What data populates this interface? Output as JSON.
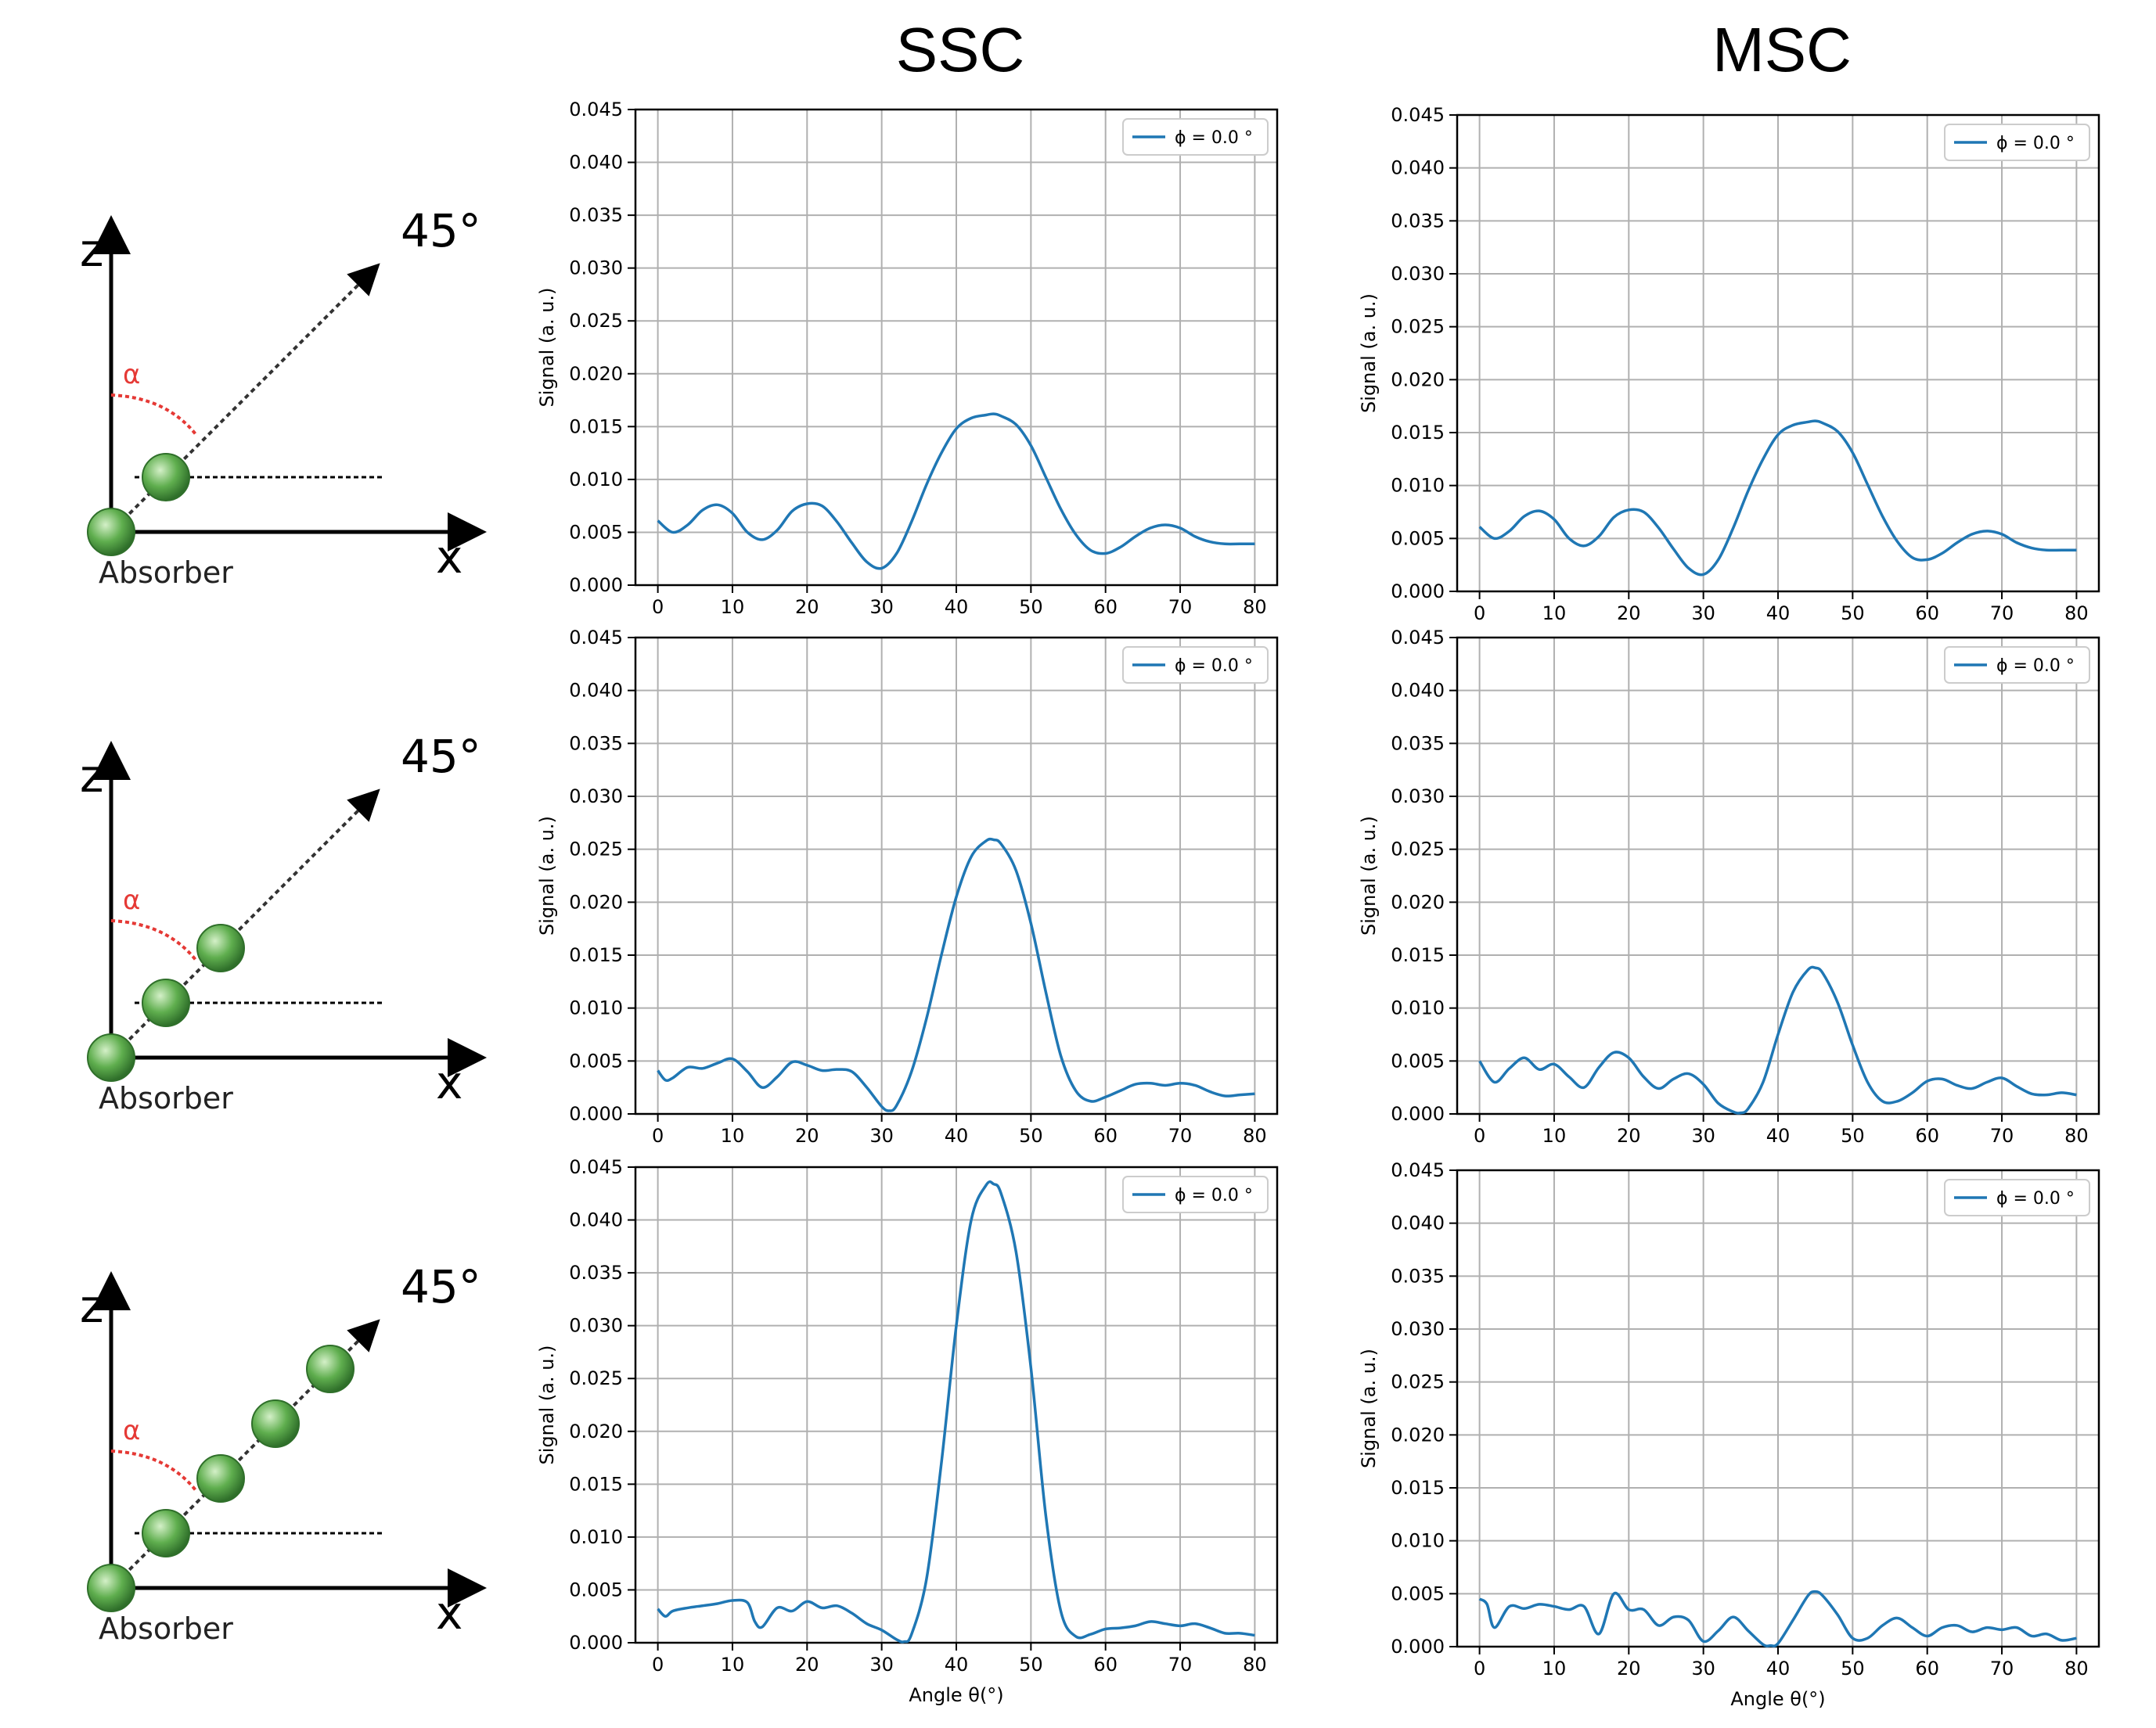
{
  "column_titles": [
    "SSC",
    "MSC"
  ],
  "diagram": {
    "axis_z": "z",
    "axis_x": "x",
    "angle_label": "45°",
    "alpha_label": "α",
    "absorber_label": "Absorber",
    "rows": [
      {
        "neighbors": 1
      },
      {
        "neighbors": 2
      },
      {
        "neighbors": 4
      }
    ]
  },
  "colors": {
    "line": "#1f77b4",
    "grid": "#b0b0b0",
    "alpha": "#e53935",
    "sphere": "#5fae4e",
    "sphere_edge": "#2f6f2a"
  },
  "chart_data": [
    {
      "type": "line",
      "row": 1,
      "column": "SSC",
      "xlabel": "",
      "ylabel": "Signal (a. u.)",
      "xlim": [
        -3,
        83
      ],
      "ylim": [
        0,
        0.045
      ],
      "xticks": [
        0,
        10,
        20,
        30,
        40,
        50,
        60,
        70,
        80
      ],
      "yticks": [
        0.0,
        0.005,
        0.01,
        0.015,
        0.02,
        0.025,
        0.03,
        0.035,
        0.04,
        0.045
      ],
      "grid": true,
      "legend_position": "top-right",
      "series": [
        {
          "name": "ϕ = 0.0 °",
          "x": [
            0,
            2,
            4,
            6,
            8,
            10,
            12,
            14,
            16,
            18,
            20,
            22,
            24,
            26,
            28,
            30,
            32,
            34,
            36,
            38,
            40,
            42,
            44,
            45,
            46,
            48,
            50,
            52,
            54,
            56,
            58,
            60,
            62,
            64,
            66,
            68,
            70,
            72,
            74,
            76,
            78,
            80
          ],
          "y": [
            0.0061,
            0.005,
            0.0057,
            0.0071,
            0.0076,
            0.0068,
            0.005,
            0.0043,
            0.0052,
            0.007,
            0.0077,
            0.0075,
            0.006,
            0.004,
            0.0022,
            0.0016,
            0.003,
            0.006,
            0.0095,
            0.0125,
            0.0148,
            0.0158,
            0.0161,
            0.0162,
            0.016,
            0.0152,
            0.0132,
            0.0102,
            0.0072,
            0.0048,
            0.0033,
            0.003,
            0.0036,
            0.0046,
            0.0054,
            0.0057,
            0.0054,
            0.0046,
            0.0041,
            0.0039,
            0.0039,
            0.0039
          ]
        }
      ]
    },
    {
      "type": "line",
      "row": 1,
      "column": "MSC",
      "xlabel": "",
      "ylabel": "Signal (a. u.)",
      "xlim": [
        -3,
        83
      ],
      "ylim": [
        0,
        0.045
      ],
      "xticks": [
        0,
        10,
        20,
        30,
        40,
        50,
        60,
        70,
        80
      ],
      "yticks": [
        0.0,
        0.005,
        0.01,
        0.015,
        0.02,
        0.025,
        0.03,
        0.035,
        0.04,
        0.045
      ],
      "grid": true,
      "legend_position": "top-right",
      "series": [
        {
          "name": "ϕ = 0.0 °",
          "x": [
            0,
            2,
            4,
            6,
            8,
            10,
            12,
            14,
            16,
            18,
            20,
            22,
            24,
            26,
            28,
            30,
            32,
            34,
            36,
            38,
            40,
            42,
            44,
            45,
            46,
            48,
            50,
            52,
            54,
            56,
            58,
            60,
            62,
            64,
            66,
            68,
            70,
            72,
            74,
            76,
            78,
            80
          ],
          "y": [
            0.0061,
            0.005,
            0.0057,
            0.0071,
            0.0076,
            0.0068,
            0.005,
            0.0043,
            0.0052,
            0.007,
            0.0077,
            0.0075,
            0.006,
            0.004,
            0.0022,
            0.0016,
            0.003,
            0.006,
            0.0095,
            0.0125,
            0.0148,
            0.0157,
            0.016,
            0.0161,
            0.0159,
            0.0151,
            0.0131,
            0.0101,
            0.0071,
            0.0047,
            0.0032,
            0.003,
            0.0036,
            0.0046,
            0.0054,
            0.0057,
            0.0054,
            0.0046,
            0.0041,
            0.0039,
            0.0039,
            0.0039
          ]
        }
      ]
    },
    {
      "type": "line",
      "row": 2,
      "column": "SSC",
      "xlabel": "",
      "ylabel": "Signal (a. u.)",
      "xlim": [
        -3,
        83
      ],
      "ylim": [
        0,
        0.045
      ],
      "xticks": [
        0,
        10,
        20,
        30,
        40,
        50,
        60,
        70,
        80
      ],
      "yticks": [
        0.0,
        0.005,
        0.01,
        0.015,
        0.02,
        0.025,
        0.03,
        0.035,
        0.04,
        0.045
      ],
      "grid": true,
      "legend_position": "top-right",
      "series": [
        {
          "name": "ϕ = 0.0 °",
          "x": [
            0,
            1,
            2,
            4,
            6,
            8,
            10,
            12,
            14,
            16,
            18,
            20,
            22,
            24,
            26,
            28,
            30,
            31,
            32,
            34,
            36,
            38,
            40,
            42,
            44,
            45,
            46,
            48,
            50,
            52,
            54,
            56,
            58,
            60,
            62,
            64,
            66,
            68,
            70,
            72,
            74,
            76,
            78,
            80
          ],
          "y": [
            0.0041,
            0.0032,
            0.0034,
            0.0044,
            0.0043,
            0.0048,
            0.0052,
            0.004,
            0.0025,
            0.0035,
            0.0049,
            0.0046,
            0.0041,
            0.0042,
            0.004,
            0.0025,
            0.0007,
            0.0003,
            0.0008,
            0.004,
            0.009,
            0.015,
            0.0205,
            0.0243,
            0.0258,
            0.0259,
            0.0255,
            0.023,
            0.018,
            0.0115,
            0.0055,
            0.0022,
            0.0012,
            0.0016,
            0.0022,
            0.0028,
            0.0029,
            0.0027,
            0.0029,
            0.0027,
            0.0021,
            0.0017,
            0.0018,
            0.0019
          ]
        }
      ]
    },
    {
      "type": "line",
      "row": 2,
      "column": "MSC",
      "xlabel": "",
      "ylabel": "Signal (a. u.)",
      "xlim": [
        -3,
        83
      ],
      "ylim": [
        0,
        0.045
      ],
      "xticks": [
        0,
        10,
        20,
        30,
        40,
        50,
        60,
        70,
        80
      ],
      "yticks": [
        0.0,
        0.005,
        0.01,
        0.015,
        0.02,
        0.025,
        0.03,
        0.035,
        0.04,
        0.045
      ],
      "grid": true,
      "legend_position": "top-right",
      "series": [
        {
          "name": "ϕ = 0.0 °",
          "x": [
            0,
            2,
            4,
            6,
            8,
            10,
            12,
            14,
            16,
            18,
            20,
            22,
            24,
            26,
            28,
            30,
            32,
            34,
            35,
            36,
            38,
            40,
            42,
            44,
            45,
            46,
            48,
            50,
            52,
            54,
            56,
            58,
            60,
            62,
            64,
            66,
            68,
            70,
            72,
            74,
            76,
            78,
            80
          ],
          "y": [
            0.005,
            0.003,
            0.0043,
            0.0053,
            0.0042,
            0.0047,
            0.0035,
            0.0025,
            0.0044,
            0.0058,
            0.0053,
            0.0035,
            0.0024,
            0.0033,
            0.0038,
            0.0028,
            0.001,
            0.0002,
            0.0001,
            0.0005,
            0.003,
            0.0075,
            0.0115,
            0.0136,
            0.0138,
            0.0133,
            0.0105,
            0.0065,
            0.003,
            0.0012,
            0.0012,
            0.002,
            0.0031,
            0.0033,
            0.0027,
            0.0024,
            0.003,
            0.0034,
            0.0026,
            0.0019,
            0.0018,
            0.002,
            0.0018
          ]
        }
      ]
    },
    {
      "type": "line",
      "row": 3,
      "column": "SSC",
      "xlabel": "Angle θ(°)",
      "ylabel": "Signal (a. u.)",
      "xlim": [
        -3,
        83
      ],
      "ylim": [
        0,
        0.045
      ],
      "xticks": [
        0,
        10,
        20,
        30,
        40,
        50,
        60,
        70,
        80
      ],
      "yticks": [
        0.0,
        0.005,
        0.01,
        0.015,
        0.02,
        0.025,
        0.03,
        0.035,
        0.04,
        0.045
      ],
      "grid": true,
      "legend_position": "top-right",
      "series": [
        {
          "name": "ϕ = 0.0 °",
          "x": [
            0,
            1,
            2,
            4,
            6,
            8,
            10,
            12,
            13,
            14,
            16,
            18,
            20,
            22,
            24,
            26,
            28,
            30,
            32,
            33,
            34,
            36,
            38,
            40,
            42,
            44,
            45,
            46,
            48,
            50,
            52,
            54,
            56,
            58,
            60,
            62,
            64,
            66,
            68,
            70,
            72,
            74,
            76,
            78,
            80
          ],
          "y": [
            0.0032,
            0.0025,
            0.003,
            0.0033,
            0.0035,
            0.0037,
            0.004,
            0.0038,
            0.002,
            0.0015,
            0.0033,
            0.003,
            0.0039,
            0.0033,
            0.0035,
            0.0028,
            0.0018,
            0.0012,
            0.0003,
            0.0001,
            0.0008,
            0.006,
            0.017,
            0.03,
            0.04,
            0.0433,
            0.0434,
            0.0425,
            0.037,
            0.026,
            0.012,
            0.003,
            0.0006,
            0.0008,
            0.0013,
            0.0014,
            0.0016,
            0.002,
            0.0018,
            0.0016,
            0.0018,
            0.0014,
            0.0009,
            0.0009,
            0.0007
          ]
        }
      ]
    },
    {
      "type": "line",
      "row": 3,
      "column": "MSC",
      "xlabel": "Angle θ(°)",
      "ylabel": "Signal (a. u.)",
      "xlim": [
        -3,
        83
      ],
      "ylim": [
        0,
        0.045
      ],
      "xticks": [
        0,
        10,
        20,
        30,
        40,
        50,
        60,
        70,
        80
      ],
      "yticks": [
        0.0,
        0.005,
        0.01,
        0.015,
        0.02,
        0.025,
        0.03,
        0.035,
        0.04,
        0.045
      ],
      "grid": true,
      "legend_position": "top-right",
      "series": [
        {
          "name": "ϕ = 0.0 °",
          "x": [
            0,
            1,
            2,
            4,
            6,
            8,
            10,
            12,
            14,
            16,
            18,
            20,
            22,
            24,
            26,
            28,
            30,
            32,
            34,
            36,
            38,
            39,
            40,
            42,
            44,
            45,
            46,
            48,
            50,
            52,
            54,
            56,
            58,
            60,
            62,
            64,
            66,
            68,
            70,
            72,
            74,
            76,
            78,
            80
          ],
          "y": [
            0.0045,
            0.004,
            0.0018,
            0.0038,
            0.0036,
            0.004,
            0.0038,
            0.0035,
            0.0038,
            0.0012,
            0.005,
            0.0035,
            0.0035,
            0.002,
            0.0028,
            0.0025,
            0.0005,
            0.0015,
            0.0028,
            0.0015,
            0.0002,
            0.0001,
            0.0003,
            0.0025,
            0.0048,
            0.0052,
            0.0048,
            0.003,
            0.0008,
            0.0008,
            0.002,
            0.0027,
            0.0018,
            0.001,
            0.0018,
            0.002,
            0.0014,
            0.0018,
            0.0016,
            0.0018,
            0.001,
            0.0012,
            0.0006,
            0.0008
          ]
        }
      ]
    }
  ]
}
